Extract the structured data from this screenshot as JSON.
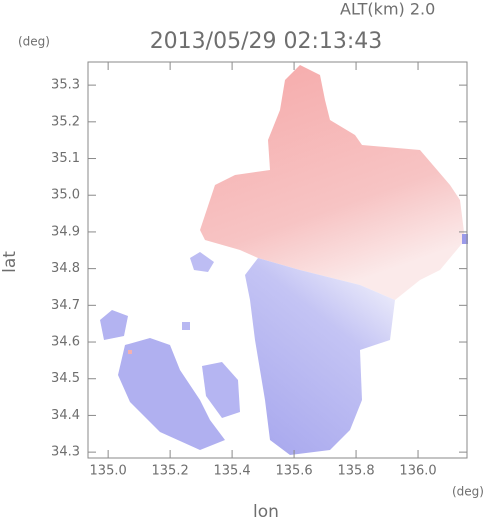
{
  "chart_data": {
    "type": "map",
    "title": "2013/05/29 02:13:43",
    "altitude_label": "ALT(km) 2.0",
    "xlabel": "lon",
    "ylabel": "lat",
    "xunit": "(deg)",
    "yunit": "(deg)",
    "xlim": [
      134.935,
      136.158
    ],
    "ylim": [
      34.284,
      35.363
    ],
    "xticks": [
      {
        "value": 135.0,
        "label": "135.0"
      },
      135.2,
      135.4,
      135.6,
      135.8,
      {
        "value": 136.0,
        "label": "136.0"
      }
    ],
    "yticks": [
      34.3,
      34.4,
      34.5,
      34.6,
      34.7,
      34.8,
      34.9,
      {
        "value": 35.0,
        "label": "35.0"
      },
      35.1,
      35.2,
      35.3
    ]
  }
}
